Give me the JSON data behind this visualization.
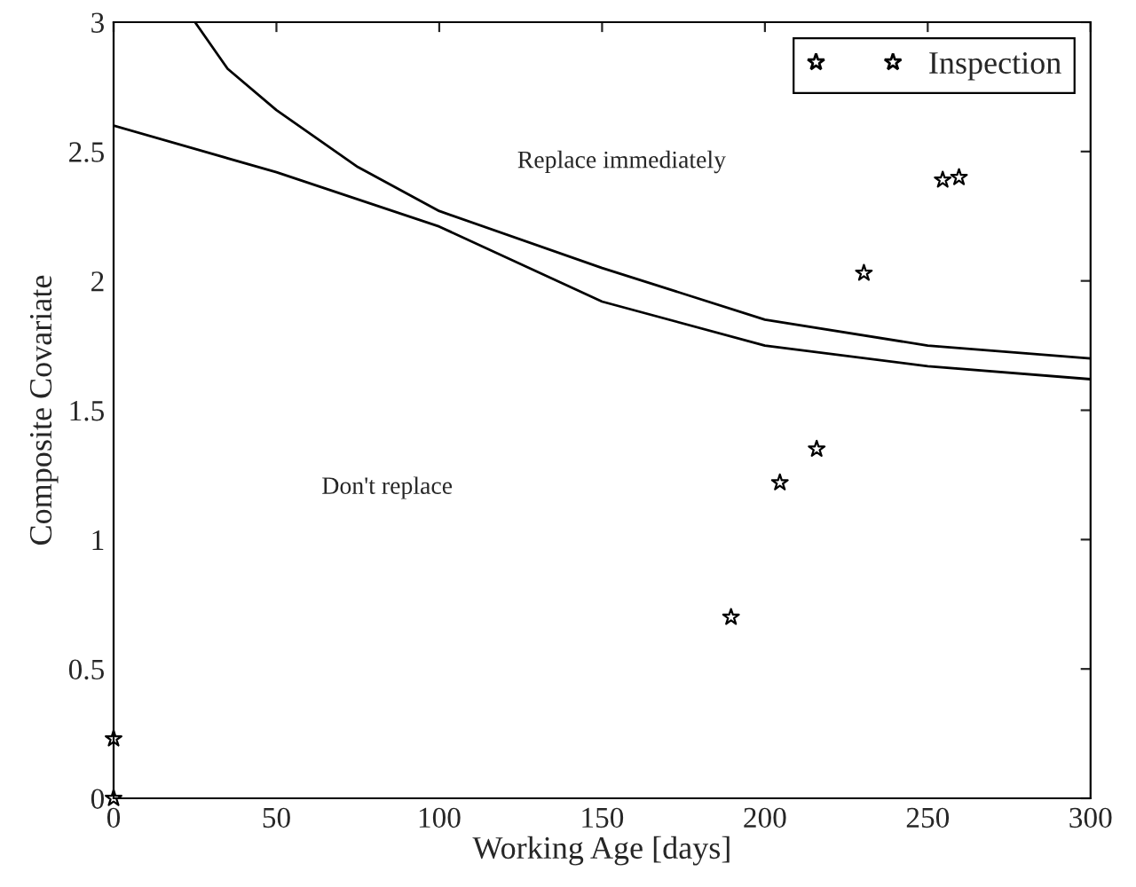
{
  "chart_data": {
    "type": "line",
    "xlabel": "Working Age [days]",
    "ylabel": "Composite Covariate",
    "xlim": [
      0,
      300
    ],
    "ylim": [
      0,
      3
    ],
    "xticks": [
      0,
      50,
      100,
      150,
      200,
      250,
      300
    ],
    "yticks": [
      0,
      0.5,
      1,
      1.5,
      2,
      2.5,
      3
    ],
    "grid": false,
    "legend": "top right",
    "series": [
      {
        "color": "#000000",
        "x": [
          25,
          35,
          50,
          75,
          100,
          150,
          200,
          250,
          300
        ],
        "values": [
          3,
          2.82,
          2.66,
          2.44,
          2.27,
          2.05,
          1.85,
          1.75,
          1.7
        ]
      },
      {
        "color": "#000000",
        "x": [
          0,
          50,
          100,
          150,
          200,
          250,
          300
        ],
        "values": [
          2.6,
          2.42,
          2.21,
          1.92,
          1.75,
          1.67,
          1.62
        ]
      },
      {
        "type": "scatter",
        "name": "Inspection",
        "color": "#000000",
        "marker": "star",
        "x": [
          0,
          0,
          189.6,
          204.6,
          215.9,
          230.4,
          254.6,
          259.6
        ],
        "values": [
          0,
          0.23,
          0.7,
          1.22,
          1.35,
          2.03,
          2.39,
          2.4
        ]
      }
    ],
    "annotations": [
      "Replace immediately",
      "Don't replace"
    ]
  }
}
